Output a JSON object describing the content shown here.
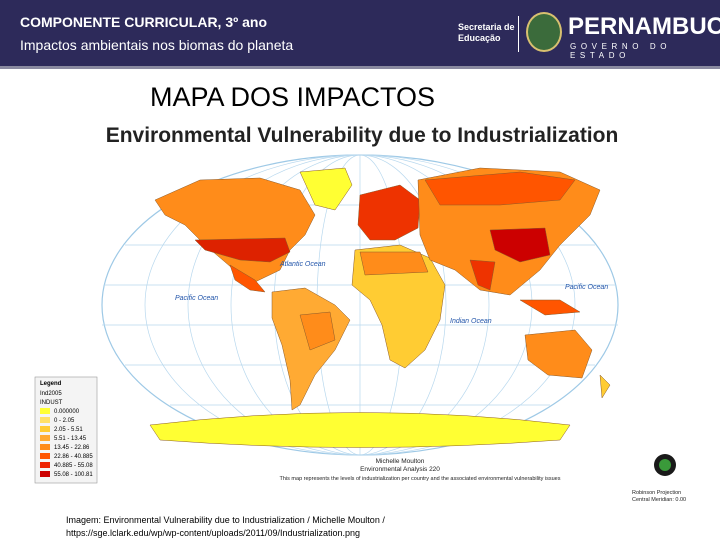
{
  "header": {
    "line1": "COMPONENTE CURRICULAR, 3º ano",
    "line2": "Impactos  ambientais nos biomas do planeta",
    "logo_secretaria": [
      "Secretaria de",
      "Educação"
    ],
    "logo_state": "PERNAMBUCO",
    "logo_government": "GOVERNO DO ESTADO"
  },
  "slide_title": "MAPA DOS IMPACTOS",
  "map": {
    "title": "Environmental Vulnerability due to Industrialization",
    "ocean_labels": [
      "Atlantic Ocean",
      "Pacific Ocean",
      "Pacific Ocean",
      "Indian Ocean"
    ],
    "legend": {
      "title": "Legend",
      "layer": "Ind2005",
      "field": "INDUST",
      "items": [
        "0.000000",
        "0 - 2.05",
        "2.05 - 5.51",
        "5.51 - 13.45",
        "13.45 - 22.86",
        "22.86 - 40.885",
        "40.885 - 55.08",
        "55.08 - 100.81"
      ]
    },
    "credit": [
      "Michelle Moulton",
      "Environmental Analysis 220",
      "This map represents the levels of industrialization per country and the associated environmental vulnerability issues"
    ],
    "logo_credit": [
      "Robinson Projection",
      "Central Meridian: 0.00"
    ]
  },
  "caption": [
    "Imagem: Environmental Vulnerability due to Industrialization / Michelle Moulton /",
    "https://sge.lclark.edu/wp/wp-content/uploads/2011/09/Industrialization.png"
  ]
}
